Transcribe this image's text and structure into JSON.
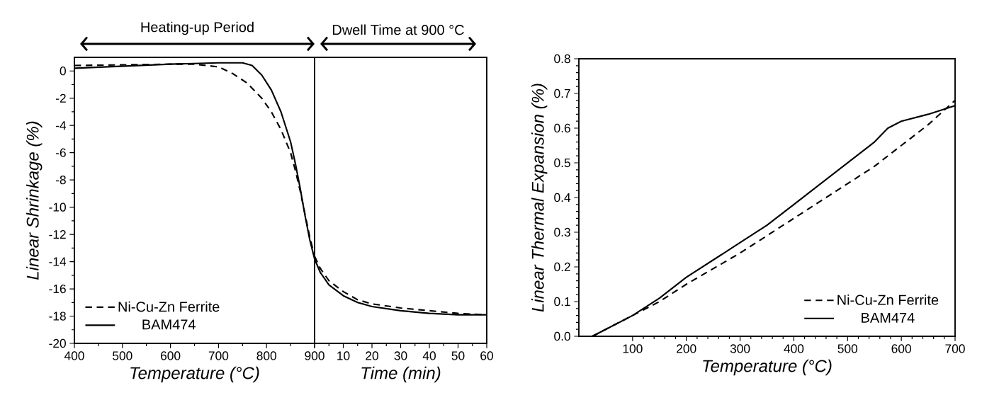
{
  "chart_data": [
    {
      "type": "line",
      "xlabel": "Temperature (°C)",
      "ylabel": "Linear Shrinkage (%)",
      "annotations": [
        "Heating-up Period"
      ],
      "xlim": [
        400,
        900
      ],
      "xticks": [
        400,
        500,
        600,
        700,
        800,
        900
      ],
      "ylim": [
        -20,
        1
      ],
      "yticks": [
        -20,
        -18,
        -16,
        -14,
        -12,
        -10,
        -8,
        -6,
        -4,
        -2,
        0
      ],
      "legend": "bottom left",
      "marker": "none",
      "series": [
        {
          "name": "Ni-Cu-Zn Ferrite",
          "color": "#000000",
          "line_style": "dashed",
          "x": [
            400,
            500,
            600,
            650,
            700,
            730,
            760,
            790,
            810,
            830,
            850,
            860,
            870,
            880,
            890,
            900
          ],
          "values": [
            0.4,
            0.45,
            0.5,
            0.5,
            0.3,
            -0.2,
            -0.9,
            -2,
            -3,
            -4.3,
            -6,
            -7.3,
            -8.8,
            -10.5,
            -12.2,
            -13.6
          ]
        },
        {
          "name": "BAM474",
          "color": "#000000",
          "line_style": "solid",
          "x": [
            400,
            500,
            600,
            700,
            750,
            770,
            790,
            810,
            830,
            850,
            860,
            870,
            880,
            890,
            900
          ],
          "values": [
            0.2,
            0.35,
            0.5,
            0.6,
            0.6,
            0.4,
            -0.3,
            -1.4,
            -3,
            -5.2,
            -6.8,
            -8.6,
            -10.6,
            -12.4,
            -13.8
          ]
        }
      ]
    },
    {
      "type": "line",
      "xlabel": "Time (min)",
      "annotations": [
        "Dwell Time at 900 °C"
      ],
      "xlim": [
        0,
        60
      ],
      "xticks": [
        {
          "value": 0,
          "label": null
        },
        10,
        20,
        30,
        40,
        50,
        60
      ],
      "ylim": [
        -20,
        1
      ],
      "tick_labels": "x",
      "marker": "none",
      "series": [
        {
          "color": "#000000",
          "line_style": "dashed",
          "x": [
            0,
            2,
            5,
            10,
            15,
            20,
            30,
            40,
            50,
            60
          ],
          "values": [
            -13.6,
            -14.5,
            -15.4,
            -16.2,
            -16.8,
            -17.1,
            -17.4,
            -17.6,
            -17.8,
            -17.9
          ]
        },
        {
          "color": "#000000",
          "line_style": "solid",
          "x": [
            0,
            2,
            5,
            10,
            15,
            20,
            30,
            40,
            50,
            60
          ],
          "values": [
            -13.8,
            -14.8,
            -15.7,
            -16.5,
            -17,
            -17.3,
            -17.6,
            -17.8,
            -17.9,
            -17.9
          ]
        }
      ]
    },
    {
      "type": "line",
      "xlabel": "Temperature (°C)",
      "ylabel": "Linear Thermal Expansion (%)",
      "xlim": [
        0,
        700
      ],
      "xticks": [
        100,
        200,
        300,
        400,
        500,
        600,
        700
      ],
      "ylim": [
        0,
        0.8
      ],
      "yticks": [
        {
          "value": 0,
          "label": "0.0"
        },
        0.1,
        0.2,
        0.3,
        0.4,
        0.5,
        0.6,
        0.7,
        0.8
      ],
      "legend": "bottom right",
      "marker": "none",
      "series": [
        {
          "name": "Ni-Cu-Zn Ferrite",
          "color": "#000000",
          "line_style": "dashed",
          "x": [
            25,
            50,
            100,
            150,
            200,
            250,
            300,
            350,
            400,
            450,
            500,
            550,
            600,
            650,
            700
          ],
          "values": [
            0,
            0.02,
            0.06,
            0.1,
            0.15,
            0.195,
            0.24,
            0.29,
            0.34,
            0.39,
            0.44,
            0.49,
            0.55,
            0.61,
            0.68
          ]
        },
        {
          "name": "BAM474",
          "color": "#000000",
          "line_style": "solid",
          "x": [
            25,
            50,
            100,
            150,
            200,
            250,
            300,
            350,
            400,
            450,
            500,
            550,
            575,
            600,
            650,
            700
          ],
          "values": [
            0,
            0.02,
            0.06,
            0.11,
            0.17,
            0.22,
            0.27,
            0.32,
            0.38,
            0.44,
            0.5,
            0.56,
            0.6,
            0.62,
            0.64,
            0.665
          ]
        }
      ]
    }
  ]
}
